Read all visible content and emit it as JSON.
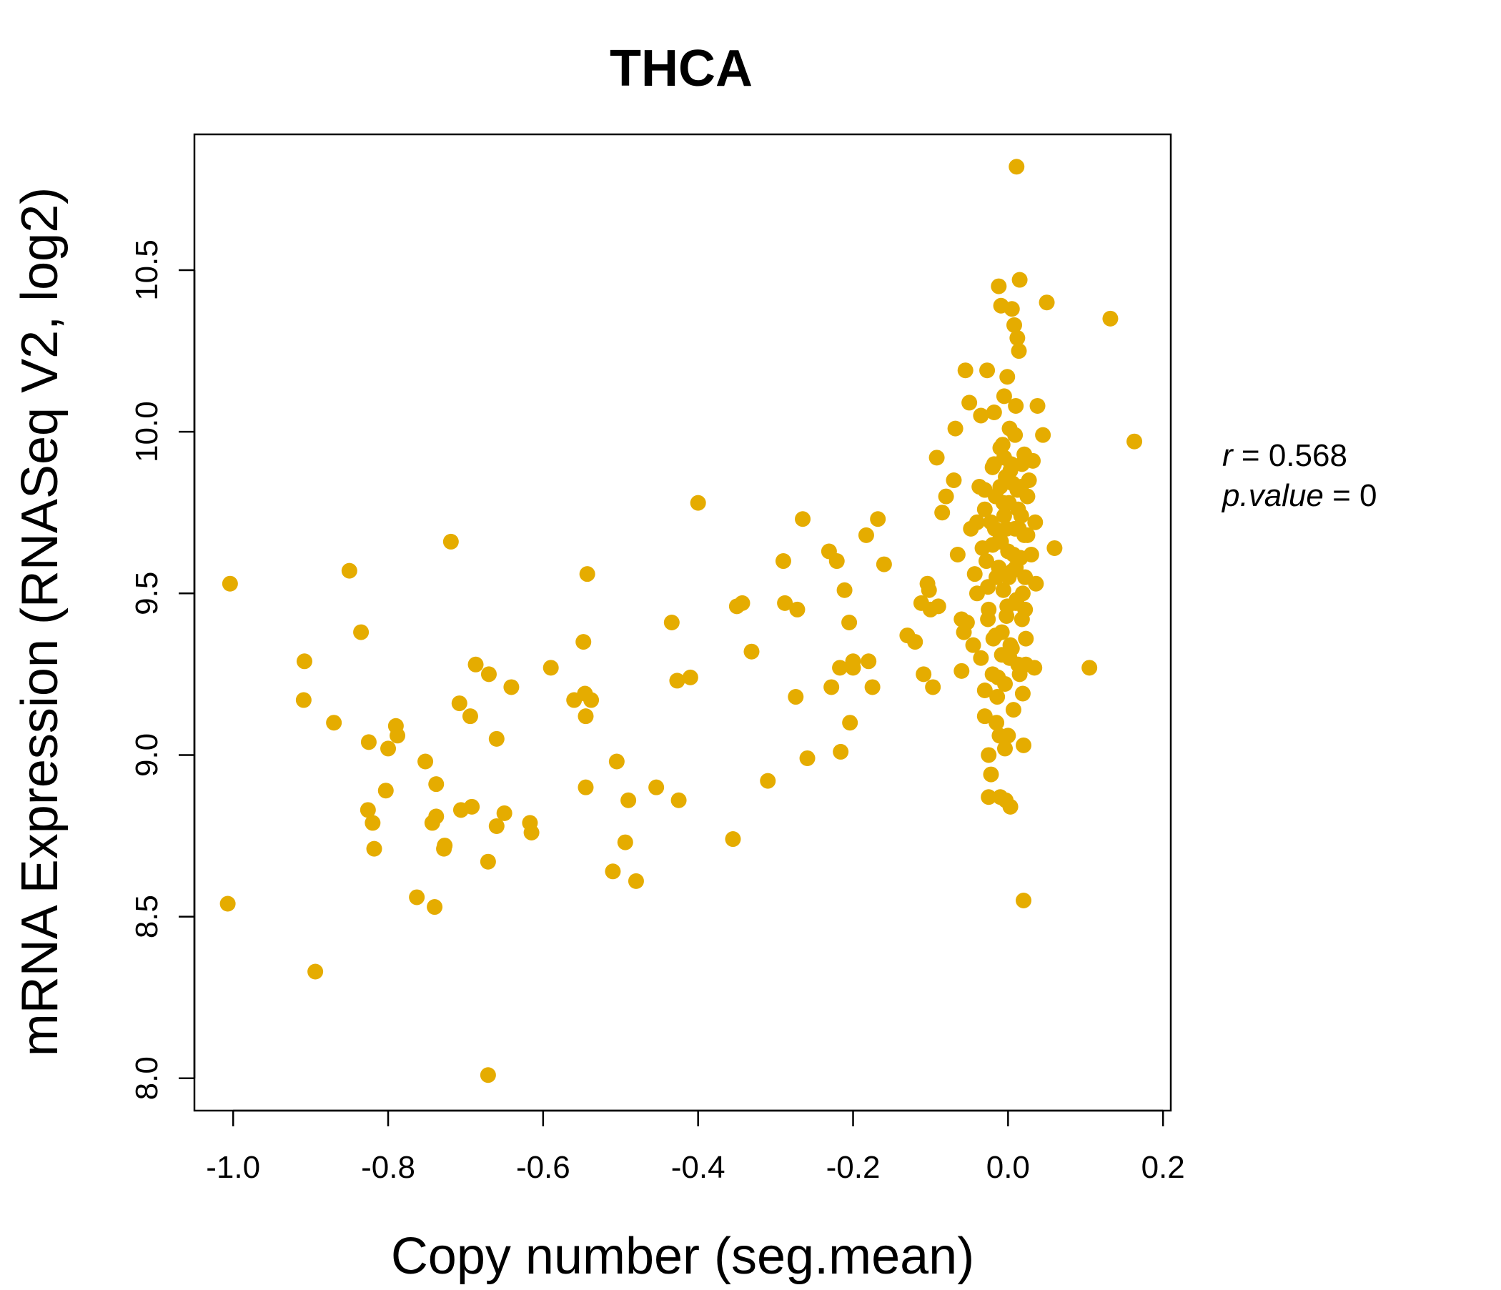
{
  "chart_data": {
    "type": "scatter",
    "title": "THCA",
    "xlabel": "Copy number (seg.mean)",
    "ylabel": "mRNA Expression (RNASeq V2, log2)",
    "xlim": [
      -1.05,
      0.21
    ],
    "ylim": [
      7.9,
      10.92
    ],
    "x_ticks": [
      -1.0,
      -0.8,
      -0.6,
      -0.4,
      -0.2,
      0.0,
      0.2
    ],
    "x_tick_labels": [
      "-1.0",
      "-0.8",
      "-0.6",
      "-0.4",
      "-0.2",
      "0.0",
      "0.2"
    ],
    "y_ticks": [
      8.0,
      8.5,
      9.0,
      9.5,
      10.0,
      10.5
    ],
    "y_tick_labels": [
      "8.0",
      "8.5",
      "9.0",
      "9.5",
      "10.0",
      "10.5"
    ],
    "stats": {
      "r_label": "r",
      "r_value": "0.568",
      "p_label": "p.value",
      "p_value": "0"
    },
    "color": "#E5AC00",
    "points": [
      [
        -1.004,
        9.53
      ],
      [
        -1.007,
        8.54
      ],
      [
        -0.894,
        8.33
      ],
      [
        -0.908,
        9.29
      ],
      [
        -0.909,
        9.17
      ],
      [
        -0.87,
        9.1
      ],
      [
        -0.85,
        9.57
      ],
      [
        -0.835,
        9.38
      ],
      [
        -0.825,
        9.04
      ],
      [
        -0.826,
        8.83
      ],
      [
        -0.82,
        8.79
      ],
      [
        -0.818,
        8.71
      ],
      [
        -0.79,
        9.09
      ],
      [
        -0.788,
        9.06
      ],
      [
        -0.8,
        9.02
      ],
      [
        -0.803,
        8.89
      ],
      [
        -0.763,
        8.56
      ],
      [
        -0.752,
        8.98
      ],
      [
        -0.74,
        8.53
      ],
      [
        -0.738,
        8.91
      ],
      [
        -0.738,
        8.81
      ],
      [
        -0.743,
        8.79
      ],
      [
        -0.727,
        8.72
      ],
      [
        -0.728,
        8.71
      ],
      [
        -0.719,
        9.66
      ],
      [
        -0.708,
        9.16
      ],
      [
        -0.706,
        8.83
      ],
      [
        -0.694,
        9.12
      ],
      [
        -0.692,
        8.84
      ],
      [
        -0.687,
        9.28
      ],
      [
        -0.67,
        9.25
      ],
      [
        -0.671,
        8.67
      ],
      [
        -0.671,
        8.01
      ],
      [
        -0.66,
        9.05
      ],
      [
        -0.66,
        8.78
      ],
      [
        -0.65,
        8.82
      ],
      [
        -0.641,
        9.21
      ],
      [
        -0.617,
        8.79
      ],
      [
        -0.615,
        8.76
      ],
      [
        -0.59,
        9.27
      ],
      [
        -0.56,
        9.17
      ],
      [
        -0.548,
        9.35
      ],
      [
        -0.546,
        9.19
      ],
      [
        -0.545,
        9.12
      ],
      [
        -0.543,
        9.56
      ],
      [
        -0.538,
        9.17
      ],
      [
        -0.545,
        8.9
      ],
      [
        -0.51,
        8.64
      ],
      [
        -0.505,
        8.98
      ],
      [
        -0.494,
        8.73
      ],
      [
        -0.49,
        8.86
      ],
      [
        -0.48,
        8.61
      ],
      [
        -0.454,
        8.9
      ],
      [
        -0.434,
        9.41
      ],
      [
        -0.427,
        9.23
      ],
      [
        -0.425,
        8.86
      ],
      [
        -0.41,
        9.24
      ],
      [
        -0.4,
        9.78
      ],
      [
        -0.355,
        8.74
      ],
      [
        -0.35,
        9.46
      ],
      [
        -0.343,
        9.47
      ],
      [
        -0.331,
        9.32
      ],
      [
        -0.31,
        8.92
      ],
      [
        -0.29,
        9.6
      ],
      [
        -0.288,
        9.47
      ],
      [
        -0.272,
        9.45
      ],
      [
        -0.274,
        9.18
      ],
      [
        -0.265,
        9.73
      ],
      [
        -0.259,
        8.99
      ],
      [
        -0.231,
        9.63
      ],
      [
        -0.228,
        9.21
      ],
      [
        -0.221,
        9.6
      ],
      [
        -0.217,
        9.27
      ],
      [
        -0.216,
        9.01
      ],
      [
        -0.211,
        9.51
      ],
      [
        -0.205,
        9.41
      ],
      [
        -0.204,
        9.1
      ],
      [
        -0.2,
        9.29
      ],
      [
        -0.2,
        9.27
      ],
      [
        -0.183,
        9.68
      ],
      [
        -0.18,
        9.29
      ],
      [
        -0.175,
        9.21
      ],
      [
        -0.168,
        9.73
      ],
      [
        -0.16,
        9.59
      ],
      [
        -0.13,
        9.37
      ],
      [
        -0.12,
        9.35
      ],
      [
        -0.112,
        9.47
      ],
      [
        -0.109,
        9.25
      ],
      [
        -0.104,
        9.53
      ],
      [
        -0.102,
        9.51
      ],
      [
        -0.1,
        9.45
      ],
      [
        -0.097,
        9.21
      ],
      [
        -0.092,
        9.92
      ],
      [
        -0.09,
        9.46
      ],
      [
        -0.085,
        9.75
      ],
      [
        -0.08,
        9.8
      ],
      [
        -0.07,
        9.85
      ],
      [
        -0.068,
        10.01
      ],
      [
        -0.065,
        9.62
      ],
      [
        -0.06,
        9.42
      ],
      [
        -0.06,
        9.26
      ],
      [
        -0.057,
        9.38
      ],
      [
        -0.055,
        10.19
      ],
      [
        -0.053,
        9.41
      ],
      [
        -0.05,
        10.09
      ],
      [
        -0.048,
        9.7
      ],
      [
        -0.045,
        9.34
      ],
      [
        -0.043,
        9.56
      ],
      [
        -0.04,
        9.5
      ],
      [
        -0.04,
        9.72
      ],
      [
        -0.037,
        9.83
      ],
      [
        -0.035,
        10.05
      ],
      [
        -0.033,
        9.64
      ],
      [
        -0.03,
        9.2
      ],
      [
        -0.03,
        9.76
      ],
      [
        -0.028,
        9.6
      ],
      [
        -0.027,
        10.19
      ],
      [
        -0.026,
        9.42
      ],
      [
        -0.025,
        9.0
      ],
      [
        -0.025,
        8.87
      ],
      [
        -0.022,
        8.94
      ],
      [
        -0.02,
        9.25
      ],
      [
        -0.02,
        9.89
      ],
      [
        -0.018,
        10.06
      ],
      [
        -0.017,
        9.7
      ],
      [
        -0.016,
        9.37
      ],
      [
        -0.015,
        9.55
      ],
      [
        -0.014,
        9.18
      ],
      [
        -0.012,
        10.45
      ],
      [
        -0.012,
        9.66
      ],
      [
        -0.011,
        9.06
      ],
      [
        -0.01,
        8.87
      ],
      [
        -0.01,
        9.83
      ],
      [
        -0.009,
        10.39
      ],
      [
        -0.008,
        9.31
      ],
      [
        -0.007,
        9.96
      ],
      [
        -0.006,
        9.51
      ],
      [
        -0.005,
        10.11
      ],
      [
        -0.005,
        9.74
      ],
      [
        -0.004,
        9.22
      ],
      [
        -0.003,
        9.86
      ],
      [
        -0.003,
        8.86
      ],
      [
        -0.002,
        9.43
      ],
      [
        -0.001,
        10.17
      ],
      [
        0.0,
        9.63
      ],
      [
        0.0,
        9.06
      ],
      [
        0.001,
        9.78
      ],
      [
        0.002,
        10.01
      ],
      [
        0.003,
        9.34
      ],
      [
        0.003,
        8.84
      ],
      [
        0.004,
        9.9
      ],
      [
        0.005,
        10.38
      ],
      [
        0.006,
        9.57
      ],
      [
        0.007,
        9.14
      ],
      [
        0.008,
        10.33
      ],
      [
        0.009,
        9.7
      ],
      [
        0.01,
        10.08
      ],
      [
        0.01,
        9.47
      ],
      [
        0.011,
        10.82
      ],
      [
        0.012,
        10.29
      ],
      [
        0.012,
        9.82
      ],
      [
        0.013,
        9.28
      ],
      [
        0.014,
        10.25
      ],
      [
        0.015,
        10.47
      ],
      [
        0.016,
        9.61
      ],
      [
        0.017,
        9.74
      ],
      [
        0.018,
        9.42
      ],
      [
        0.019,
        9.19
      ],
      [
        0.02,
        8.55
      ],
      [
        0.02,
        9.03
      ],
      [
        0.021,
        9.93
      ],
      [
        0.022,
        9.55
      ],
      [
        0.023,
        9.36
      ],
      [
        0.025,
        9.68
      ],
      [
        0.027,
        9.85
      ],
      [
        0.03,
        9.62
      ],
      [
        0.032,
        9.91
      ],
      [
        0.034,
        9.27
      ],
      [
        0.035,
        9.72
      ],
      [
        0.036,
        9.53
      ],
      [
        0.038,
        10.08
      ],
      [
        0.045,
        9.99
      ],
      [
        0.05,
        10.4
      ],
      [
        0.06,
        9.64
      ],
      [
        0.105,
        9.27
      ],
      [
        0.132,
        10.35
      ],
      [
        0.163,
        9.97
      ],
      [
        -0.035,
        9.3
      ],
      [
        -0.03,
        9.12
      ],
      [
        -0.025,
        9.45
      ],
      [
        -0.02,
        9.65
      ],
      [
        -0.018,
        9.9
      ],
      [
        -0.015,
        9.1
      ],
      [
        -0.012,
        9.58
      ],
      [
        -0.01,
        9.95
      ],
      [
        -0.008,
        9.38
      ],
      [
        -0.006,
        9.78
      ],
      [
        -0.004,
        9.02
      ],
      [
        -0.002,
        9.7
      ],
      [
        0.001,
        9.55
      ],
      [
        0.003,
        9.88
      ],
      [
        0.005,
        9.33
      ],
      [
        0.007,
        9.62
      ],
      [
        0.009,
        9.99
      ],
      [
        0.011,
        9.48
      ],
      [
        0.013,
        9.76
      ],
      [
        0.015,
        9.25
      ],
      [
        0.017,
        9.83
      ],
      [
        0.019,
        9.5
      ],
      [
        0.021,
        9.68
      ],
      [
        0.023,
        9.28
      ],
      [
        0.025,
        9.8
      ],
      [
        -0.03,
        9.82
      ],
      [
        -0.026,
        9.52
      ],
      [
        -0.022,
        9.72
      ],
      [
        -0.019,
        9.36
      ],
      [
        -0.016,
        9.8
      ],
      [
        -0.013,
        9.24
      ],
      [
        -0.009,
        9.66
      ],
      [
        -0.005,
        9.92
      ],
      [
        -0.001,
        9.46
      ],
      [
        0.002,
        9.3
      ],
      [
        0.006,
        9.84
      ],
      [
        0.01,
        9.58
      ],
      [
        0.014,
        9.7
      ],
      [
        0.018,
        9.9
      ],
      [
        0.022,
        9.45
      ]
    ]
  }
}
